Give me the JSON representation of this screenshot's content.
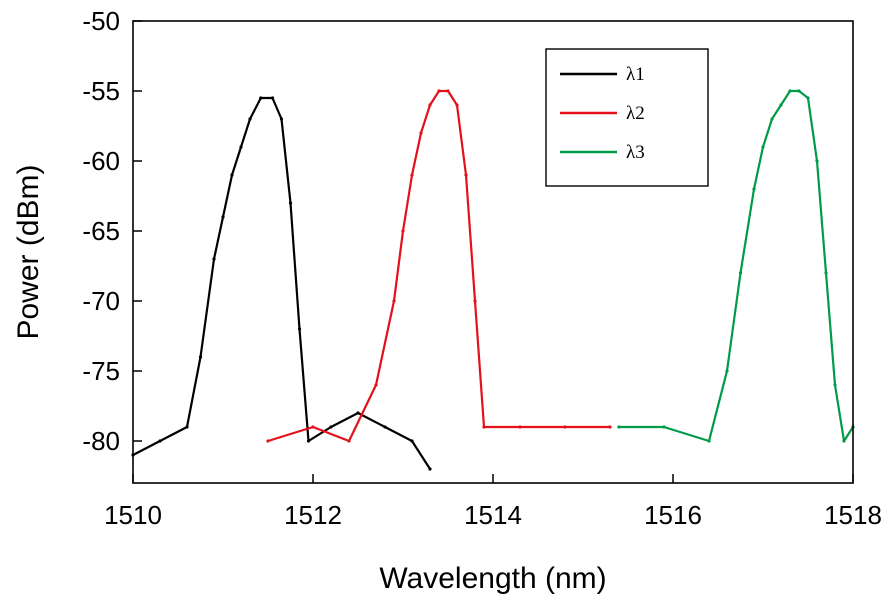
{
  "chart_data": {
    "type": "line",
    "title": "",
    "xlabel": "Wavelength (nm)",
    "ylabel": "Power (dBm)",
    "xlim": [
      1510,
      1518
    ],
    "ylim": [
      -83,
      -50
    ],
    "x_ticks": [
      "1510",
      "1512",
      "1514",
      "1516",
      "1518"
    ],
    "y_ticks": [
      "-50",
      "-55",
      "-60",
      "-65",
      "-70",
      "-75",
      "-80"
    ],
    "grid": false,
    "legend_position": "top-right",
    "series": [
      {
        "name": "λ1",
        "color": "#000000",
        "x": [
          1510.0,
          1510.3,
          1510.6,
          1510.75,
          1510.9,
          1511.0,
          1511.1,
          1511.2,
          1511.3,
          1511.42,
          1511.55,
          1511.65,
          1511.75,
          1511.85,
          1511.95,
          1512.2,
          1512.5,
          1512.8,
          1513.1,
          1513.3
        ],
        "y": [
          -81,
          -80,
          -79,
          -74,
          -67,
          -64,
          -61,
          -59,
          -57,
          -55.5,
          -55.5,
          -57,
          -63,
          -72,
          -80,
          -79,
          -78,
          -79,
          -80,
          -82
        ]
      },
      {
        "name": "λ2",
        "color": "#e3111b",
        "x": [
          1511.5,
          1512.0,
          1512.4,
          1512.7,
          1512.9,
          1513.0,
          1513.1,
          1513.2,
          1513.3,
          1513.4,
          1513.5,
          1513.6,
          1513.7,
          1513.8,
          1513.9,
          1514.3,
          1514.8,
          1515.3
        ],
        "y": [
          -80,
          -79,
          -80,
          -76,
          -70,
          -65,
          -61,
          -58,
          -56,
          -55,
          -55,
          -56,
          -61,
          -70,
          -79,
          -79,
          -79,
          -79
        ]
      },
      {
        "name": "λ3",
        "color": "#009b48",
        "x": [
          1515.4,
          1515.9,
          1516.4,
          1516.6,
          1516.75,
          1516.9,
          1517.0,
          1517.1,
          1517.2,
          1517.3,
          1517.4,
          1517.5,
          1517.6,
          1517.7,
          1517.8,
          1517.9,
          1518.0
        ],
        "y": [
          -79,
          -79,
          -80,
          -75,
          -68,
          -62,
          -59,
          -57,
          -56,
          -55,
          -55,
          -55.5,
          -60,
          -68,
          -76,
          -80,
          -79
        ]
      }
    ]
  }
}
